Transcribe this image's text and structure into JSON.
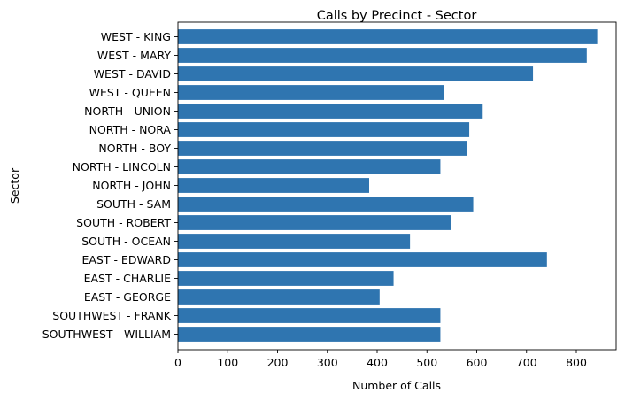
{
  "chart_data": {
    "type": "bar",
    "orientation": "horizontal",
    "title": "Calls by Precinct - Sector",
    "xlabel": "Number of Calls",
    "ylabel": "Sector",
    "xlim": [
      0,
      880
    ],
    "xticks": [
      0,
      100,
      200,
      300,
      400,
      500,
      600,
      700,
      800
    ],
    "bar_color": "#2f75b0",
    "grid": false,
    "categories": [
      "WEST - KING",
      "WEST - MARY",
      "WEST - DAVID",
      "WEST - QUEEN",
      "NORTH - UNION",
      "NORTH - NORA",
      "NORTH - BOY",
      "NORTH - LINCOLN",
      "NORTH - JOHN",
      "SOUTH - SAM",
      "SOUTH - ROBERT",
      "SOUTH - OCEAN",
      "EAST - EDWARD",
      "EAST - CHARLIE",
      "EAST - GEORGE",
      "SOUTHWEST - FRANK",
      "SOUTHWEST - WILLIAM"
    ],
    "values": [
      842,
      821,
      713,
      535,
      612,
      585,
      581,
      527,
      384,
      593,
      549,
      466,
      741,
      433,
      405,
      527,
      527
    ]
  }
}
